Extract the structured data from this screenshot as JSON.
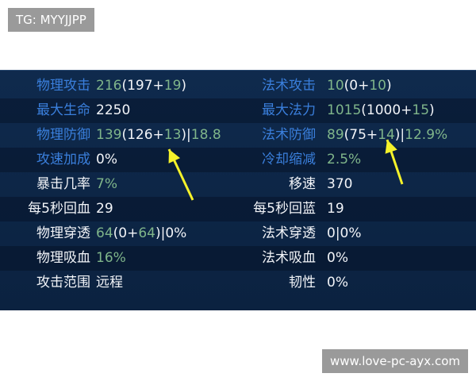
{
  "watermarks": {
    "top": "TG: MYYJJPP",
    "bottom": "www.love-pc-ayx.com"
  },
  "colors": {
    "label_blue": "#3a7fdc",
    "value_green": "#7fb58a",
    "text_white": "#f2f4f8",
    "arrow": "#f5f22a",
    "panel": "#0f2a4d"
  },
  "left": [
    {
      "label": "物理攻击",
      "label_color": "blue",
      "value": [
        {
          "t": "216",
          "c": "green"
        },
        {
          "t": "(197+",
          "c": "white"
        },
        {
          "t": "19",
          "c": "green"
        },
        {
          "t": ")",
          "c": "white"
        }
      ]
    },
    {
      "label": "最大生命",
      "label_color": "blue",
      "value": [
        {
          "t": "2250",
          "c": "white"
        }
      ]
    },
    {
      "label": "物理防御",
      "label_color": "blue",
      "value": [
        {
          "t": "139",
          "c": "green"
        },
        {
          "t": "(126+",
          "c": "white"
        },
        {
          "t": "13",
          "c": "green"
        },
        {
          "t": ")|",
          "c": "white"
        },
        {
          "t": "18.8",
          "c": "green"
        }
      ]
    },
    {
      "label": "攻速加成",
      "label_color": "blue",
      "value": [
        {
          "t": "0%",
          "c": "white"
        }
      ]
    },
    {
      "label": "暴击几率",
      "label_color": "white",
      "value": [
        {
          "t": "7%",
          "c": "green"
        }
      ]
    },
    {
      "label": "每5秒回血",
      "label_color": "white",
      "value": [
        {
          "t": "29",
          "c": "white"
        }
      ]
    },
    {
      "label": "物理穿透",
      "label_color": "white",
      "value": [
        {
          "t": "64",
          "c": "green"
        },
        {
          "t": "(0+",
          "c": "white"
        },
        {
          "t": "64",
          "c": "green"
        },
        {
          "t": ")|0%",
          "c": "white"
        }
      ]
    },
    {
      "label": "物理吸血",
      "label_color": "white",
      "value": [
        {
          "t": "16%",
          "c": "green"
        }
      ]
    },
    {
      "label": "攻击范围",
      "label_color": "white",
      "value": [
        {
          "t": "远程",
          "c": "white"
        }
      ]
    }
  ],
  "right": [
    {
      "label": "法术攻击",
      "label_color": "blue",
      "value": [
        {
          "t": "10",
          "c": "green"
        },
        {
          "t": "(0+",
          "c": "white"
        },
        {
          "t": "10",
          "c": "green"
        },
        {
          "t": ")",
          "c": "white"
        }
      ]
    },
    {
      "label": "最大法力",
      "label_color": "blue",
      "value": [
        {
          "t": "1015",
          "c": "green"
        },
        {
          "t": "(1000+",
          "c": "white"
        },
        {
          "t": "15",
          "c": "green"
        },
        {
          "t": ")",
          "c": "white"
        }
      ]
    },
    {
      "label": "法术防御",
      "label_color": "blue",
      "value": [
        {
          "t": "89",
          "c": "green"
        },
        {
          "t": "(75+",
          "c": "white"
        },
        {
          "t": "14",
          "c": "green"
        },
        {
          "t": ")|",
          "c": "white"
        },
        {
          "t": "12.9%",
          "c": "green"
        }
      ]
    },
    {
      "label": "冷却缩减",
      "label_color": "blue",
      "value": [
        {
          "t": "2.5%",
          "c": "green"
        }
      ]
    },
    {
      "label": "移速",
      "label_color": "white",
      "value": [
        {
          "t": "370",
          "c": "white"
        }
      ]
    },
    {
      "label": "每5秒回蓝",
      "label_color": "white",
      "value": [
        {
          "t": "19",
          "c": "white"
        }
      ]
    },
    {
      "label": "法术穿透",
      "label_color": "white",
      "value": [
        {
          "t": "0|0%",
          "c": "white"
        }
      ]
    },
    {
      "label": "法术吸血",
      "label_color": "white",
      "value": [
        {
          "t": "0%",
          "c": "white"
        }
      ]
    },
    {
      "label": "韧性",
      "label_color": "white",
      "value": [
        {
          "t": "0%",
          "c": "white"
        }
      ]
    }
  ]
}
